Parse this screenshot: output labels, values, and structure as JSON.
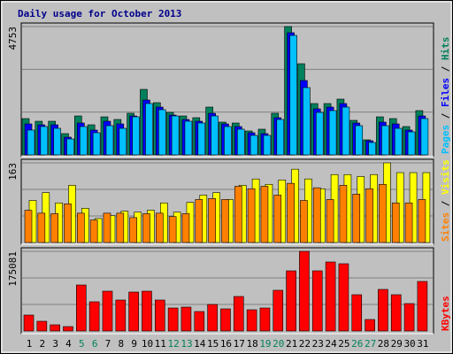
{
  "title": "Daily usage for October 2013",
  "chart_data": [
    {
      "type": "bar",
      "ylim": [
        0,
        4753
      ],
      "yticks": [
        4753
      ],
      "legend_separator": " / ",
      "series": [
        {
          "name": "Hits",
          "color": "#00805c",
          "values": [
            1344,
            1245,
            1245,
            787,
            1442,
            1114,
            1409,
            1311,
            1541,
            2426,
            1934,
            1573,
            1442,
            1377,
            1770,
            1213,
            1180,
            885,
            951,
            1541,
            4753,
            3376,
            1901,
            1901,
            2065,
            1278,
            557,
            1409,
            1344,
            1049,
            1639
          ]
        },
        {
          "name": "Files",
          "color": "#0000ff",
          "values": [
            1147,
            1115,
            1115,
            656,
            1180,
            918,
            1246,
            1147,
            1442,
            2032,
            1770,
            1475,
            1311,
            1246,
            1541,
            1147,
            1049,
            820,
            787,
            1377,
            4524,
            2754,
            1705,
            1770,
            1901,
            1180,
            524,
            1213,
            1147,
            918,
            1442
          ]
        },
        {
          "name": "Pages",
          "color": "#00c0ff",
          "values": [
            918,
            1049,
            983,
            590,
            1049,
            820,
            1082,
            983,
            1410,
            1901,
            1672,
            1442,
            1246,
            1180,
            1442,
            1049,
            951,
            721,
            721,
            1311,
            4425,
            2491,
            1573,
            1639,
            1770,
            1082,
            459,
            1082,
            983,
            852,
            1344
          ]
        }
      ]
    },
    {
      "type": "bar",
      "ylim": [
        0,
        163
      ],
      "yticks": [
        163
      ],
      "legend_separator": " / ",
      "series": [
        {
          "name": "Visits",
          "color": "#ffff00",
          "values": [
            86,
            102,
            81,
            117,
            70,
            49,
            55,
            64,
            62,
            66,
            81,
            62,
            82,
            97,
            102,
            88,
            117,
            130,
            119,
            128,
            150,
            130,
            110,
            139,
            139,
            135,
            139,
            163,
            143,
            143,
            143
          ]
        },
        {
          "name": "Sites",
          "color": "#ff8000",
          "values": [
            66,
            60,
            59,
            79,
            60,
            46,
            60,
            60,
            51,
            59,
            60,
            53,
            59,
            88,
            90,
            88,
            115,
            110,
            115,
            97,
            121,
            86,
            112,
            88,
            117,
            99,
            110,
            119,
            81,
            81,
            88
          ]
        }
      ]
    },
    {
      "type": "bar",
      "ylim": [
        0,
        175081
      ],
      "yticks": [
        175081
      ],
      "categories": [
        "1",
        "2",
        "3",
        "4",
        "5",
        "6",
        "7",
        "8",
        "9",
        "10",
        "11",
        "12",
        "13",
        "14",
        "15",
        "16",
        "17",
        "18",
        "19",
        "20",
        "21",
        "22",
        "23",
        "24",
        "25",
        "26",
        "27",
        "28",
        "29",
        "30",
        "31"
      ],
      "label_colors": [
        "#000000",
        "#000000",
        "#000000",
        "#000000",
        "#00805c",
        "#00805c",
        "#000000",
        "#000000",
        "#000000",
        "#000000",
        "#000000",
        "#00805c",
        "#00805c",
        "#000000",
        "#000000",
        "#000000",
        "#000000",
        "#000000",
        "#00805c",
        "#00805c",
        "#000000",
        "#000000",
        "#000000",
        "#000000",
        "#000000",
        "#00805c",
        "#00805c",
        "#000000",
        "#000000",
        "#000000",
        "#000000"
      ],
      "series": [
        {
          "name": "KBytes",
          "color": "#ff0000",
          "values": [
            35015,
            21400,
            13617,
            9727,
            101150,
            64190,
            87530,
            68080,
            85590,
            87530,
            68080,
            50575,
            52520,
            42790,
            58350,
            48630,
            75860,
            46680,
            50575,
            89480,
            132270,
            175081,
            132270,
            151720,
            147830,
            79750,
            25290,
            91420,
            79750,
            60300,
            108930
          ]
        }
      ]
    }
  ]
}
